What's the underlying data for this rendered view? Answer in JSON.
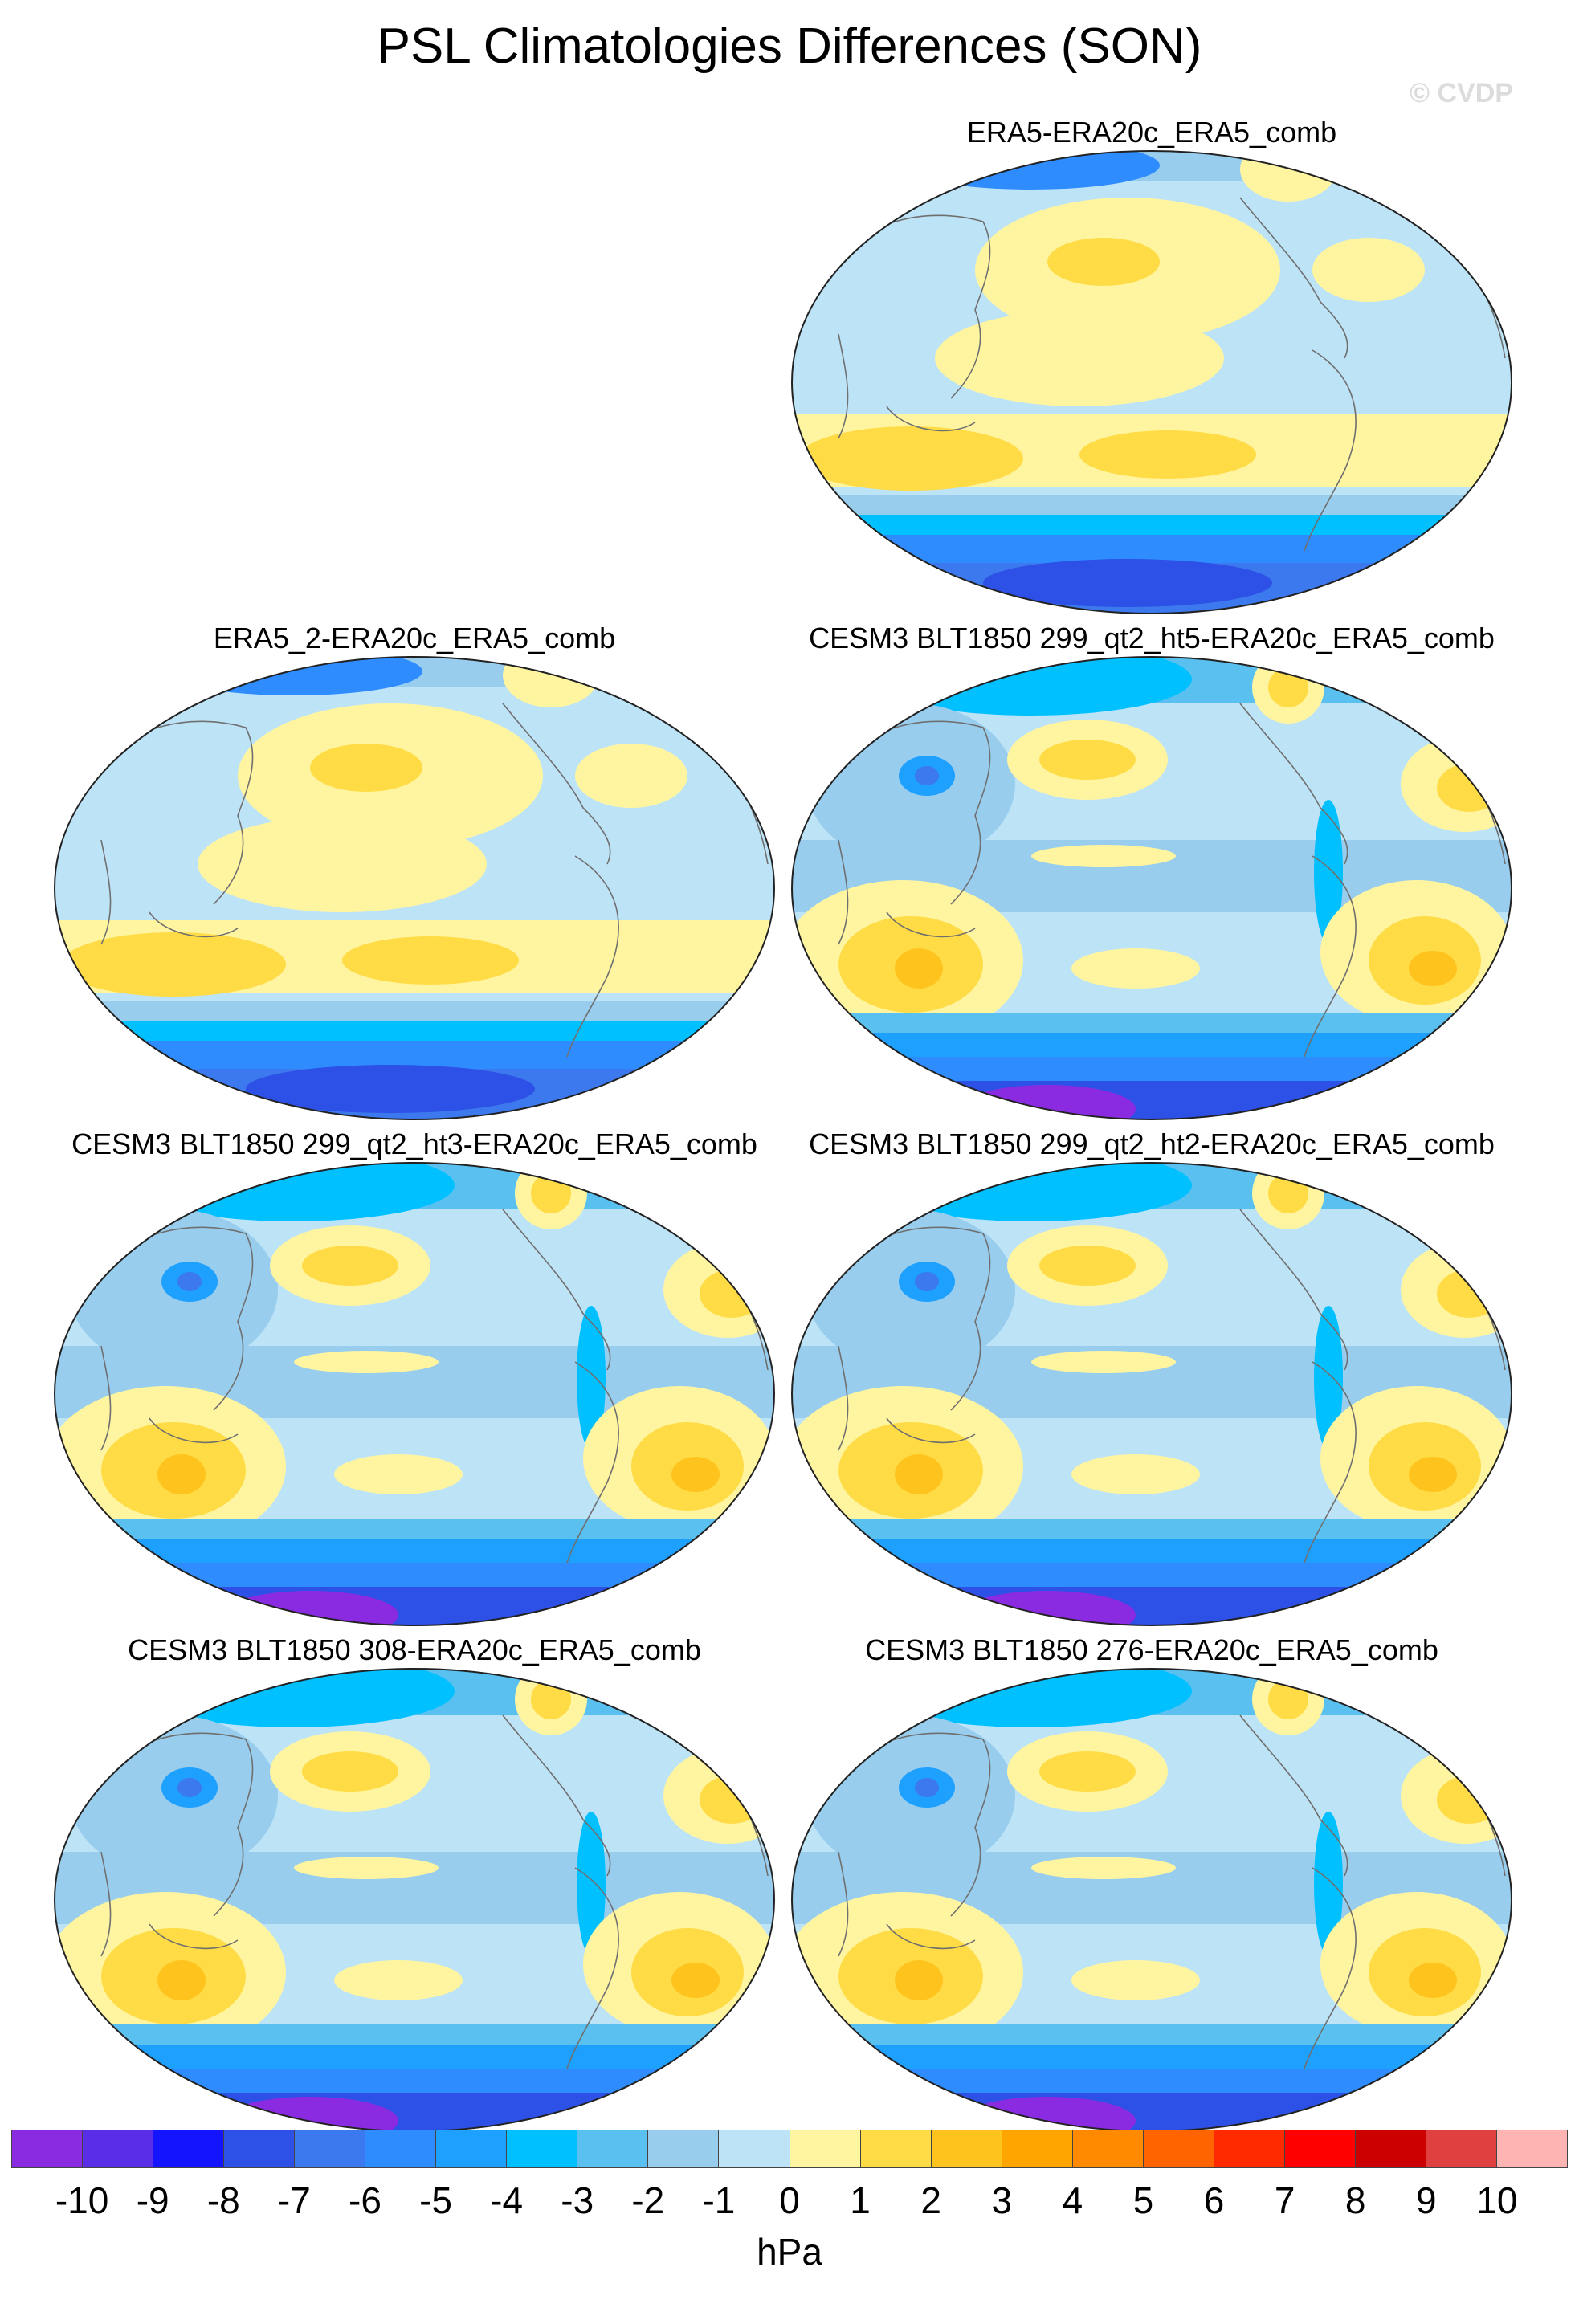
{
  "title": "PSL Climatologies Differences (SON)",
  "watermark": "© CVDP",
  "panels": [
    {
      "title": "ERA5-ERA20c_ERA5_comb",
      "style": "era"
    },
    {
      "title": "ERA5_2-ERA20c_ERA5_comb",
      "style": "era"
    },
    {
      "title": "CESM3 BLT1850 299_qt2_ht5-ERA20c_ERA5_comb",
      "style": "cesm"
    },
    {
      "title": "CESM3 BLT1850 299_qt2_ht3-ERA20c_ERA5_comb",
      "style": "cesm"
    },
    {
      "title": "CESM3 BLT1850 299_qt2_ht2-ERA20c_ERA5_comb",
      "style": "cesm"
    },
    {
      "title": "CESM3 BLT1850 308-ERA20c_ERA5_comb",
      "style": "cesm"
    },
    {
      "title": "CESM3 BLT1850 276-ERA20c_ERA5_comb",
      "style": "cesm"
    }
  ],
  "colorbar": {
    "colors": [
      "#8a2be2",
      "#5a2de6",
      "#1414ff",
      "#2d50e6",
      "#3c78ee",
      "#2e8cff",
      "#1ea0ff",
      "#00c0ff",
      "#5ac0f0",
      "#98cdee",
      "#bde3f7",
      "#fff5a0",
      "#ffdc46",
      "#ffc31e",
      "#ffa500",
      "#ff8a00",
      "#ff6400",
      "#ff2a00",
      "#ff0000",
      "#cc0000",
      "#e04040",
      "#ffb4b4"
    ],
    "labels": [
      "-10",
      "-9",
      "-8",
      "-7",
      "-6",
      "-5",
      "-4",
      "-3",
      "-2",
      "-1",
      "0",
      "1",
      "2",
      "3",
      "4",
      "5",
      "6",
      "7",
      "8",
      "9",
      "10"
    ],
    "units": "hPa"
  }
}
